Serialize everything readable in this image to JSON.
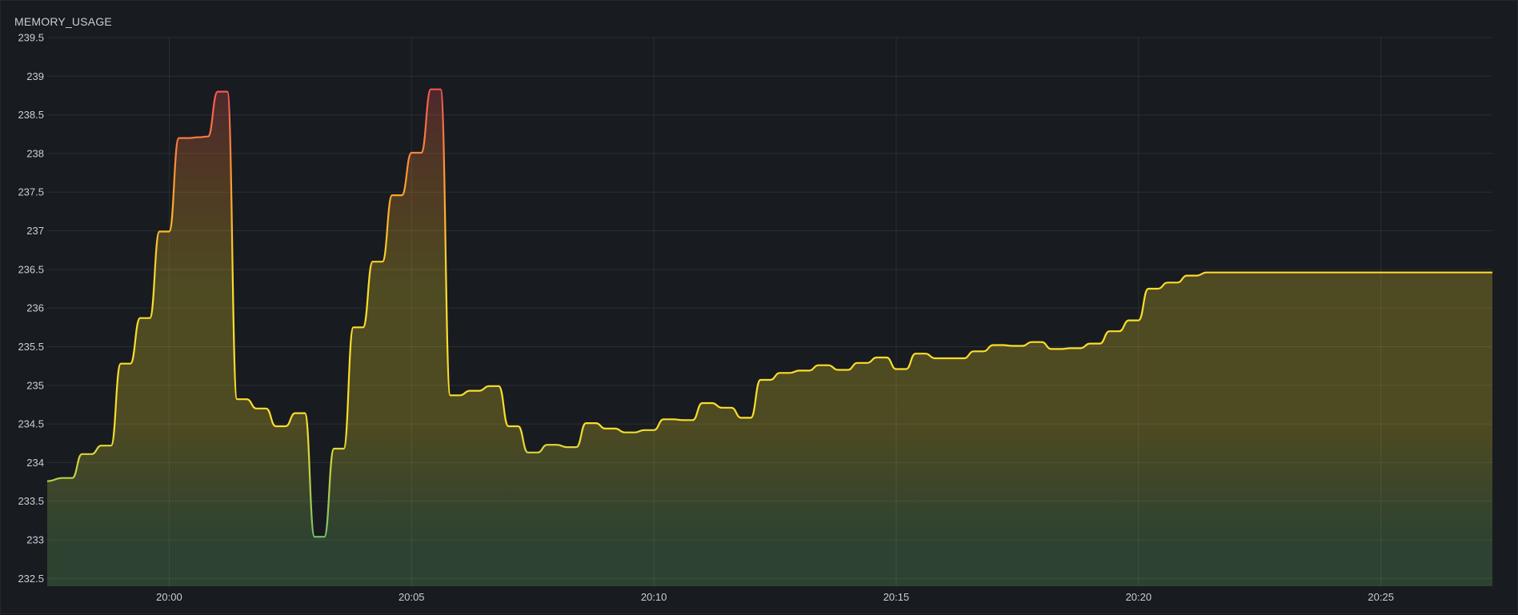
{
  "panel": {
    "title": "MEMORY_USAGE"
  },
  "chart_data": {
    "type": "area",
    "title": "MEMORY_USAGE",
    "xlabel": "",
    "ylabel": "",
    "x_ticks": [
      "20:00",
      "20:05",
      "20:10",
      "20:15",
      "20:20",
      "20:25"
    ],
    "y_ticks": [
      "232.5",
      "233",
      "233.5",
      "234",
      "234.5",
      "235",
      "235.5",
      "236",
      "236.5",
      "237",
      "237.5",
      "238",
      "238.5",
      "239",
      "239.5"
    ],
    "ylim": [
      232.4,
      239.5
    ],
    "xlim": [
      "19:57:29",
      "20:27:18"
    ],
    "grid": true,
    "legend": "none",
    "gradient_thresholds": {
      "low": 233,
      "high": 239
    },
    "colors": {
      "low": "#73bf69",
      "mid": "#fade2a",
      "midhigh": "#ff9830",
      "high": "#f2495c"
    },
    "series": [
      {
        "x": [
          "19:57:29",
          "19:57:48",
          "19:58:00",
          "19:58:12",
          "19:58:24",
          "19:58:36",
          "19:58:48",
          "19:59:00",
          "19:59:12",
          "19:59:24",
          "19:59:36",
          "19:59:48",
          "20:00:00",
          "20:00:12",
          "20:00:24",
          "20:00:36",
          "20:00:48",
          "20:01:00",
          "20:01:12",
          "20:01:24",
          "20:01:36",
          "20:01:48",
          "20:02:00",
          "20:02:12",
          "20:02:24",
          "20:02:36",
          "20:02:48",
          "20:03:00",
          "20:03:12",
          "20:03:24",
          "20:03:36",
          "20:03:48",
          "20:04:00",
          "20:04:12",
          "20:04:24",
          "20:04:36",
          "20:04:48",
          "20:05:00",
          "20:05:12",
          "20:05:24",
          "20:05:36",
          "20:05:48",
          "20:06:00",
          "20:06:12",
          "20:06:24",
          "20:06:36",
          "20:06:48",
          "20:07:00",
          "20:07:12",
          "20:07:24",
          "20:07:36",
          "20:07:48",
          "20:08:00",
          "20:08:12",
          "20:08:24",
          "20:08:36",
          "20:08:48",
          "20:09:00",
          "20:09:12",
          "20:09:24",
          "20:09:36",
          "20:09:48",
          "20:10:00",
          "20:10:12",
          "20:10:24",
          "20:10:36",
          "20:10:48",
          "20:11:00",
          "20:11:12",
          "20:11:24",
          "20:11:36",
          "20:11:48",
          "20:12:00",
          "20:12:12",
          "20:12:24",
          "20:12:36",
          "20:12:48",
          "20:13:00",
          "20:13:12",
          "20:13:24",
          "20:13:36",
          "20:13:48",
          "20:14:00",
          "20:14:12",
          "20:14:24",
          "20:14:36",
          "20:14:48",
          "20:15:00",
          "20:15:12",
          "20:15:24",
          "20:15:36",
          "20:15:48",
          "20:16:00",
          "20:16:12",
          "20:16:24",
          "20:16:36",
          "20:16:48",
          "20:17:00",
          "20:17:12",
          "20:17:24",
          "20:17:36",
          "20:17:48",
          "20:18:00",
          "20:18:12",
          "20:18:24",
          "20:18:36",
          "20:18:48",
          "20:19:00",
          "20:19:12",
          "20:19:24",
          "20:19:36",
          "20:19:48",
          "20:20:00",
          "20:20:12",
          "20:20:24",
          "20:20:36",
          "20:20:48",
          "20:21:00",
          "20:21:12",
          "20:21:24",
          "20:21:36",
          "20:21:48",
          "20:22:00",
          "20:22:12",
          "20:22:24",
          "20:22:36",
          "20:22:48",
          "20:23:00",
          "20:23:12",
          "20:23:24",
          "20:23:36",
          "20:23:48",
          "20:24:00",
          "20:24:12",
          "20:24:24",
          "20:24:36",
          "20:24:48",
          "20:25:00",
          "20:25:12",
          "20:25:24",
          "20:25:36",
          "20:25:48",
          "20:26:00",
          "20:26:12",
          "20:26:24",
          "20:26:36",
          "20:26:48",
          "20:27:00",
          "20:27:18"
        ],
        "values": [
          233.76,
          233.8,
          233.8,
          234.11,
          234.11,
          234.22,
          234.22,
          235.28,
          235.28,
          235.87,
          235.87,
          236.99,
          236.99,
          238.2,
          238.2,
          238.21,
          238.22,
          238.8,
          238.8,
          234.82,
          234.82,
          234.7,
          234.7,
          234.47,
          234.47,
          234.64,
          234.64,
          233.04,
          233.04,
          234.18,
          234.18,
          235.75,
          235.75,
          236.6,
          236.6,
          237.46,
          237.46,
          238.01,
          238.01,
          238.83,
          238.83,
          234.87,
          234.87,
          234.93,
          234.93,
          234.99,
          234.99,
          234.47,
          234.47,
          234.13,
          234.13,
          234.23,
          234.23,
          234.2,
          234.2,
          234.51,
          234.51,
          234.44,
          234.44,
          234.39,
          234.39,
          234.42,
          234.42,
          234.56,
          234.56,
          234.55,
          234.55,
          234.77,
          234.77,
          234.71,
          234.71,
          234.58,
          234.58,
          235.07,
          235.07,
          235.16,
          235.16,
          235.19,
          235.19,
          235.26,
          235.26,
          235.2,
          235.2,
          235.29,
          235.29,
          235.36,
          235.36,
          235.21,
          235.21,
          235.41,
          235.41,
          235.35,
          235.35,
          235.35,
          235.35,
          235.44,
          235.44,
          235.52,
          235.52,
          235.51,
          235.51,
          235.56,
          235.56,
          235.47,
          235.47,
          235.48,
          235.48,
          235.54,
          235.54,
          235.7,
          235.7,
          235.84,
          235.84,
          236.25,
          236.25,
          236.33,
          236.33,
          236.42,
          236.42,
          236.46,
          236.46,
          236.46,
          236.46,
          236.46,
          236.46,
          236.46,
          236.46,
          236.46,
          236.46,
          236.46,
          236.46,
          236.46,
          236.46,
          236.46,
          236.46,
          236.46,
          236.46,
          236.46,
          236.46,
          236.46,
          236.46,
          236.46,
          236.46,
          236.46,
          236.46,
          236.46,
          236.46,
          236.46,
          236.46
        ]
      }
    ]
  }
}
